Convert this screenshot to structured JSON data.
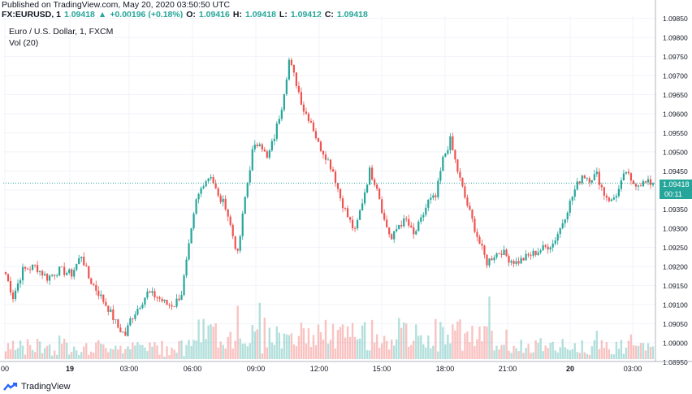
{
  "header": {
    "published": "Published on TradingView.com, May 20, 2020 03:50:50 UTC",
    "symbol": "FX:EURUSD, 1",
    "last": "1.09418",
    "arrow": "▲",
    "change": "+0.00196 (+0.18%)",
    "o_label": "O:",
    "o_value": "1.09416",
    "h_label": "H:",
    "h_value": "1.09418",
    "l_label": "L:",
    "l_value": "1.09412",
    "c_label": "C:",
    "c_value": "1.09418"
  },
  "legend": {
    "main": "Euro / U.S. Dollar, 1, FXCM",
    "volume": "Vol (20)"
  },
  "badges": {
    "price": "1.09418",
    "countdown": "00:11"
  },
  "footer": {
    "brand": "TradingView"
  },
  "colors": {
    "up": "#26a69a",
    "down": "#ef5350",
    "grid": "#f0f3fa",
    "axis_text": "#131722"
  },
  "chart_data": {
    "type": "candlestick",
    "title": "Euro / U.S. Dollar, 1, FXCM",
    "ylim": [
      1.08955,
      1.09855
    ],
    "y_ticks": [
      "1.09850",
      "1.09800",
      "1.09750",
      "1.09700",
      "1.09650",
      "1.09600",
      "1.09550",
      "1.09500",
      "1.09450",
      "1.09400",
      "1.09350",
      "1.09300",
      "1.09250",
      "1.09200",
      "1.09150",
      "1.09100",
      "1.09050",
      "1.09000",
      "1.08950"
    ],
    "x_ticks": [
      "00",
      "19",
      "03:00",
      "06:00",
      "09:00",
      "12:00",
      "15:00",
      "18:00",
      "21:00",
      "20",
      "03:00"
    ],
    "bold_x_ticks": [
      "19",
      "20"
    ],
    "current_price": 1.09418,
    "price_path": [
      [
        0,
        1.0918
      ],
      [
        3,
        1.0912
      ],
      [
        7,
        1.0919
      ],
      [
        12,
        1.092
      ],
      [
        17,
        1.0917
      ],
      [
        22,
        1.0919
      ],
      [
        27,
        1.0918
      ],
      [
        31,
        1.0923
      ],
      [
        34,
        1.0917
      ],
      [
        38,
        1.0913
      ],
      [
        42,
        1.0909
      ],
      [
        46,
        1.0904
      ],
      [
        49,
        1.0902
      ],
      [
        51,
        1.0906
      ],
      [
        54,
        1.0909
      ],
      [
        58,
        1.0913
      ],
      [
        62,
        1.0912
      ],
      [
        66,
        1.091
      ],
      [
        69,
        1.091
      ],
      [
        72,
        1.0913
      ],
      [
        75,
        1.0925
      ],
      [
        78,
        1.0937
      ],
      [
        81,
        1.0942
      ],
      [
        84,
        1.0944
      ],
      [
        87,
        1.0938
      ],
      [
        90,
        1.0936
      ],
      [
        93,
        1.0928
      ],
      [
        95,
        1.0923
      ],
      [
        98,
        1.0938
      ],
      [
        101,
        1.095
      ],
      [
        104,
        1.0953
      ],
      [
        107,
        1.0948
      ],
      [
        110,
        1.0954
      ],
      [
        113,
        1.0962
      ],
      [
        116,
        1.0974
      ],
      [
        119,
        1.0968
      ],
      [
        122,
        1.0961
      ],
      [
        125,
        1.0958
      ],
      [
        128,
        1.0952
      ],
      [
        131,
        1.0949
      ],
      [
        134,
        1.0945
      ],
      [
        137,
        1.0938
      ],
      [
        140,
        1.0933
      ],
      [
        143,
        1.0929
      ],
      [
        146,
        1.0937
      ],
      [
        149,
        1.0945
      ],
      [
        152,
        1.0941
      ],
      [
        155,
        1.0932
      ],
      [
        158,
        1.0927
      ],
      [
        161,
        1.0931
      ],
      [
        164,
        1.0932
      ],
      [
        167,
        1.0928
      ],
      [
        170,
        1.0932
      ],
      [
        173,
        1.0937
      ],
      [
        176,
        1.0938
      ],
      [
        179,
        1.0948
      ],
      [
        182,
        1.0953
      ],
      [
        185,
        1.0945
      ],
      [
        188,
        1.0938
      ],
      [
        191,
        1.0932
      ],
      [
        194,
        1.0926
      ],
      [
        197,
        1.0921
      ],
      [
        200,
        1.0923
      ],
      [
        203,
        1.0924
      ],
      [
        206,
        1.0922
      ],
      [
        209,
        1.0921
      ],
      [
        212,
        1.0922
      ],
      [
        215,
        1.0923
      ],
      [
        218,
        1.0924
      ],
      [
        221,
        1.0925
      ],
      [
        224,
        1.0926
      ],
      [
        227,
        1.093
      ],
      [
        230,
        1.0935
      ],
      [
        233,
        1.094
      ],
      [
        236,
        1.0944
      ],
      [
        239,
        1.0943
      ],
      [
        242,
        1.0944
      ],
      [
        245,
        1.0939
      ],
      [
        248,
        1.0937
      ],
      [
        251,
        1.094
      ],
      [
        254,
        1.0945
      ],
      [
        256,
        1.09418
      ]
    ]
  }
}
